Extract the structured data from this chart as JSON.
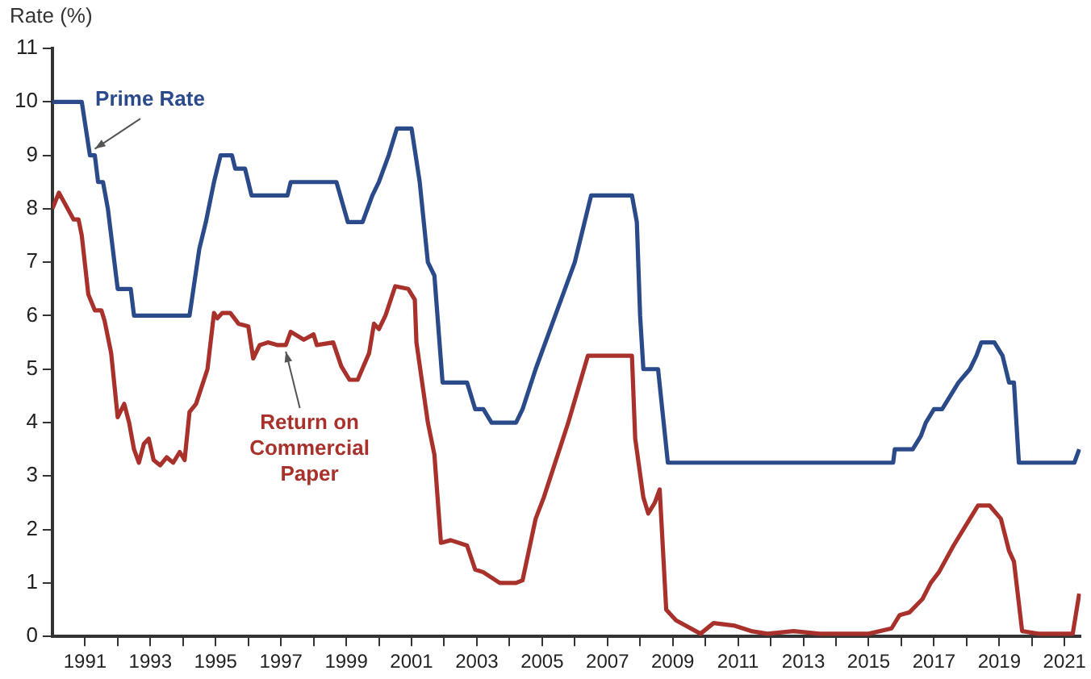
{
  "chart_data": {
    "type": "line",
    "ylabel": "Rate (%)",
    "xlim": [
      1990,
      2021.5
    ],
    "ylim": [
      0,
      11
    ],
    "xticks": [
      1991,
      {
        "value": 1992,
        "label": null
      },
      1993,
      {
        "value": 1994,
        "label": null
      },
      1995,
      {
        "value": 1996,
        "label": null
      },
      1997,
      {
        "value": 1998,
        "label": null
      },
      1999,
      {
        "value": 2000,
        "label": null
      },
      2001,
      {
        "value": 2002,
        "label": null
      },
      2003,
      {
        "value": 2004,
        "label": null
      },
      2005,
      {
        "value": 2006,
        "label": null
      },
      2007,
      {
        "value": 2008,
        "label": null
      },
      2009,
      {
        "value": 2010,
        "label": null
      },
      2011,
      {
        "value": 2012,
        "label": null
      },
      2013,
      {
        "value": 2014,
        "label": null
      },
      2015,
      {
        "value": 2016,
        "label": null
      },
      2017,
      {
        "value": 2018,
        "label": null
      },
      2019,
      {
        "value": 2020,
        "label": null
      },
      2021
    ],
    "yticks": [
      0,
      1,
      2,
      3,
      4,
      5,
      6,
      7,
      8,
      9,
      10,
      11
    ],
    "grid": false,
    "legend": false,
    "marker": "none",
    "line_style": "solid",
    "series": [
      {
        "name": "Prime Rate",
        "color": "#2b4a8a",
        "x": [
          1990.0,
          1990.9,
          1991.15,
          1991.3,
          1991.4,
          1991.55,
          1991.7,
          1992.0,
          1992.4,
          1992.5,
          1994.2,
          1994.5,
          1994.7,
          1994.95,
          1995.15,
          1995.5,
          1995.6,
          1995.9,
          1996.1,
          1997.2,
          1997.3,
          1998.7,
          1999.05,
          1999.5,
          1999.8,
          2000.0,
          2000.3,
          2000.55,
          2001.0,
          2001.25,
          2001.5,
          2001.7,
          2001.95,
          2002.7,
          2002.95,
          2003.2,
          2003.45,
          2004.2,
          2004.4,
          2004.8,
          2005.4,
          2006.0,
          2006.5,
          2007.75,
          2007.9,
          2008.0,
          2008.1,
          2008.55,
          2008.85,
          2015.75,
          2015.8,
          2016.35,
          2016.6,
          2016.75,
          2017.0,
          2017.25,
          2017.5,
          2017.75,
          2018.1,
          2018.3,
          2018.45,
          2018.85,
          2019.1,
          2019.2,
          2019.3,
          2019.45,
          2019.6,
          2021.3,
          2021.45
        ],
        "values": [
          10,
          10,
          9,
          9,
          8.5,
          8.5,
          8,
          6.5,
          6.5,
          6,
          6,
          7.25,
          7.75,
          8.5,
          9,
          9,
          8.75,
          8.75,
          8.25,
          8.25,
          8.5,
          8.5,
          7.75,
          7.75,
          8.25,
          8.5,
          9,
          9.5,
          9.5,
          8.5,
          7,
          6.75,
          4.75,
          4.75,
          4.25,
          4.25,
          4,
          4,
          4.25,
          5,
          6,
          7,
          8.25,
          8.25,
          7.75,
          6,
          5,
          5,
          3.25,
          3.25,
          3.5,
          3.5,
          3.75,
          4,
          4.25,
          4.25,
          4.5,
          4.75,
          5,
          5.25,
          5.5,
          5.5,
          5.25,
          5,
          4.75,
          4.75,
          3.25,
          3.25,
          3.5
        ]
      },
      {
        "name": "Return on Commercial Paper",
        "color": "#a8322b",
        "x": [
          1990.0,
          1990.2,
          1990.65,
          1990.8,
          1990.9,
          1991.1,
          1991.3,
          1991.5,
          1991.6,
          1991.8,
          1992.0,
          1992.2,
          1992.35,
          1992.5,
          1992.65,
          1992.8,
          1992.95,
          1993.1,
          1993.3,
          1993.5,
          1993.7,
          1993.9,
          1994.05,
          1994.2,
          1994.4,
          1994.75,
          1994.95,
          1995.05,
          1995.2,
          1995.45,
          1995.7,
          1996.0,
          1996.15,
          1996.35,
          1996.6,
          1996.9,
          1997.15,
          1997.3,
          1997.7,
          1998.0,
          1998.1,
          1998.6,
          1998.85,
          1999.1,
          1999.35,
          1999.7,
          1999.85,
          2000.0,
          2000.2,
          2000.5,
          2000.9,
          2001.1,
          2001.15,
          2001.5,
          2001.7,
          2001.9,
          2002.2,
          2002.7,
          2002.95,
          2003.2,
          2003.7,
          2004.2,
          2004.4,
          2004.8,
          2005.05,
          2005.8,
          2006.4,
          2007.75,
          2007.85,
          2008.1,
          2008.25,
          2008.45,
          2008.6,
          2008.8,
          2009.1,
          2009.85,
          2010.25,
          2010.9,
          2011.4,
          2011.9,
          2012.7,
          2013.5,
          2015.0,
          2015.7,
          2015.95,
          2016.25,
          2016.65,
          2016.9,
          2017.15,
          2017.6,
          2017.9,
          2018.35,
          2018.7,
          2019.05,
          2019.3,
          2019.45,
          2019.7,
          2020.2,
          2021.25,
          2021.45
        ],
        "values": [
          8,
          8.3,
          7.8,
          7.8,
          7.5,
          6.4,
          6.1,
          6.1,
          5.9,
          5.3,
          4.1,
          4.35,
          4,
          3.5,
          3.25,
          3.6,
          3.7,
          3.3,
          3.2,
          3.35,
          3.25,
          3.45,
          3.3,
          4.2,
          4.35,
          5,
          6.05,
          5.95,
          6.05,
          6.05,
          5.85,
          5.8,
          5.2,
          5.45,
          5.5,
          5.45,
          5.45,
          5.7,
          5.55,
          5.65,
          5.45,
          5.5,
          5.05,
          4.8,
          4.8,
          5.3,
          5.85,
          5.75,
          6,
          6.55,
          6.5,
          6.3,
          5.5,
          4,
          3.4,
          1.75,
          1.8,
          1.7,
          1.25,
          1.2,
          1,
          1,
          1.05,
          2.2,
          2.6,
          4,
          5.25,
          5.25,
          3.7,
          2.6,
          2.3,
          2.5,
          2.75,
          0.5,
          0.3,
          0.05,
          0.25,
          0.2,
          0.1,
          0.05,
          0.1,
          0.05,
          0.05,
          0.15,
          0.4,
          0.45,
          0.7,
          1,
          1.2,
          1.7,
          2,
          2.45,
          2.45,
          2.2,
          1.6,
          1.4,
          0.1,
          0.05,
          0.05,
          0.8
        ]
      }
    ]
  }
}
